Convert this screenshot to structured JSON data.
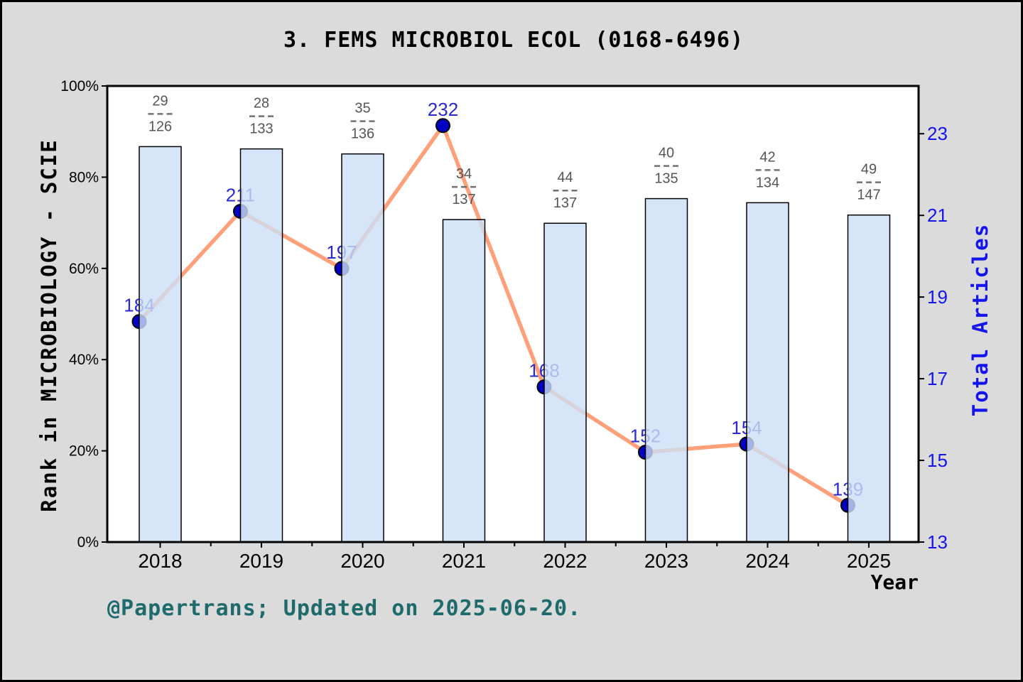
{
  "title": "3. FEMS MICROBIOL ECOL (0168-6496)",
  "footer": "@Papertrans; Updated on 2025-06-20.",
  "chart_data": {
    "type": "bar+line combo",
    "title": "3. FEMS MICROBIOL ECOL (0168-6496)",
    "categories": [
      "2018",
      "2019",
      "2020",
      "2021",
      "2022",
      "2023",
      "2024",
      "2025"
    ],
    "series": [
      {
        "name": "Rank in MICROBIOLOGY - SCIE",
        "type": "bar",
        "axis": "left",
        "unit": "percent",
        "values": [
          86.7,
          86.2,
          85.1,
          70.7,
          69.9,
          75.3,
          74.4,
          71.7
        ]
      },
      {
        "name": "Total Articles",
        "type": "line",
        "axis": "right",
        "values": [
          184,
          211,
          197,
          232,
          168,
          152,
          154,
          139
        ],
        "point_labels": [
          "184",
          "211",
          "197",
          "232",
          "168",
          "152",
          "154",
          "139"
        ]
      }
    ],
    "bar_fraction_labels": [
      {
        "num": "29",
        "den": "126"
      },
      {
        "num": "28",
        "den": "133"
      },
      {
        "num": "35",
        "den": "136"
      },
      {
        "num": "34",
        "den": "137"
      },
      {
        "num": "44",
        "den": "137"
      },
      {
        "num": "40",
        "den": "135"
      },
      {
        "num": "42",
        "den": "134"
      },
      {
        "num": "49",
        "den": "147"
      }
    ],
    "left_axis": {
      "label": "Rank in MICROBIOLOGY - SCIE",
      "tick_labels": [
        "0%",
        "20%",
        "40%",
        "60%",
        "80%",
        "100%"
      ],
      "tick_values": [
        0,
        20,
        40,
        60,
        80,
        100
      ],
      "min": 0,
      "max": 100
    },
    "right_axis": {
      "label": "Total Articles",
      "tick_labels": [
        "13",
        "15",
        "17",
        "19",
        "21",
        "23"
      ],
      "tick_values": [
        13,
        15,
        17,
        19,
        21,
        23
      ],
      "min": 13,
      "max": 24.17,
      "note_scale": "line values are axis units x10"
    },
    "x_axis": {
      "label": "Year",
      "tick_labels": [
        "2018",
        "2019",
        "2020",
        "2021",
        "2022",
        "2023",
        "2024",
        "2025"
      ]
    },
    "grid": "off",
    "legend": "none",
    "colors": {
      "figure_bg": "#DBDBDB",
      "plot_bg": "#FFFFFF",
      "frame": "#000000",
      "bar_fill": "#CCE0F6",
      "bar_fill_opacity": 0.8,
      "bar_border": "#000000",
      "line": "#FFA07A",
      "marker_fill": "#0000C4",
      "marker_border": "#000000",
      "point_label": "#2A2AD4",
      "right_axis_text": "#1414EE",
      "left_axis_text": "#000000",
      "fraction_text": "#555555",
      "fraction_dash": "#707070",
      "footer_text": "#1F6A6A"
    }
  }
}
